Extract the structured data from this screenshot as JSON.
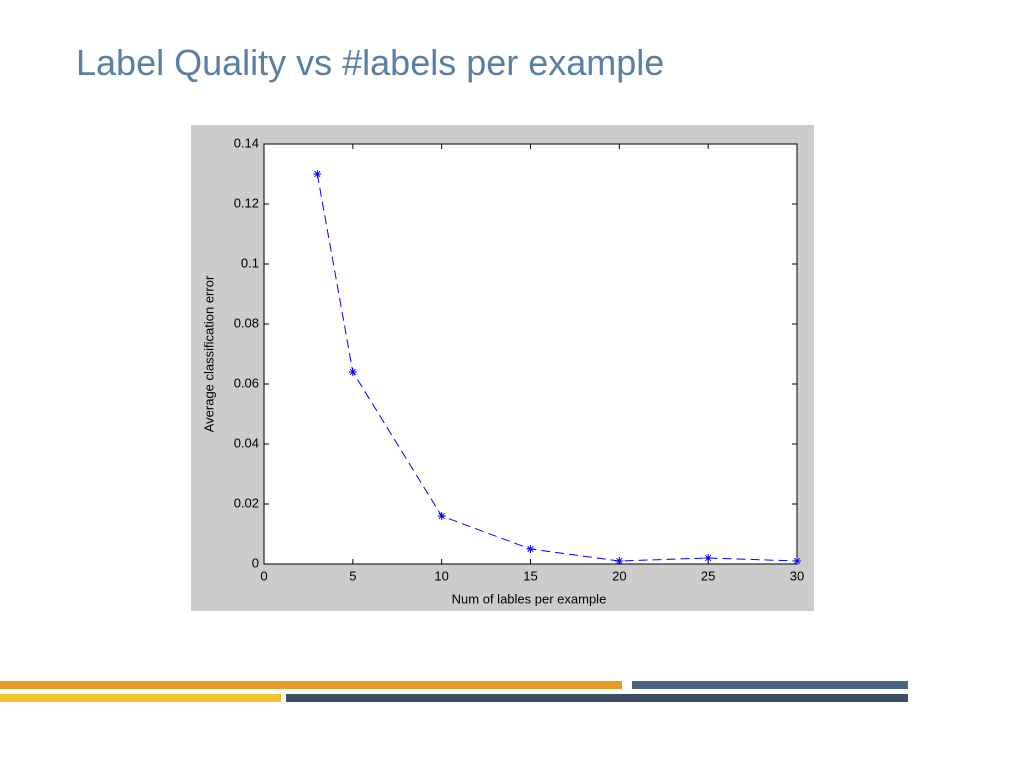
{
  "chart_data": {
    "type": "line",
    "title": "Label Quality vs #labels per example",
    "xlabel": "Num of lables per example",
    "ylabel": "Average classification error",
    "x": [
      3,
      5,
      10,
      15,
      20,
      25,
      30
    ],
    "series": [
      {
        "name": "error",
        "color": "#0000ff",
        "values": [
          0.13,
          0.064,
          0.016,
          0.005,
          0.001,
          0.002,
          0.001
        ]
      }
    ],
    "xlim": [
      0,
      30
    ],
    "xticks": [
      0,
      5,
      10,
      15,
      20,
      25,
      30
    ],
    "ylim": [
      0,
      0.14
    ],
    "yticks": [
      0,
      0.02,
      0.04,
      0.06,
      0.08,
      0.1,
      0.12,
      0.14
    ],
    "grid": false,
    "legend": false
  }
}
